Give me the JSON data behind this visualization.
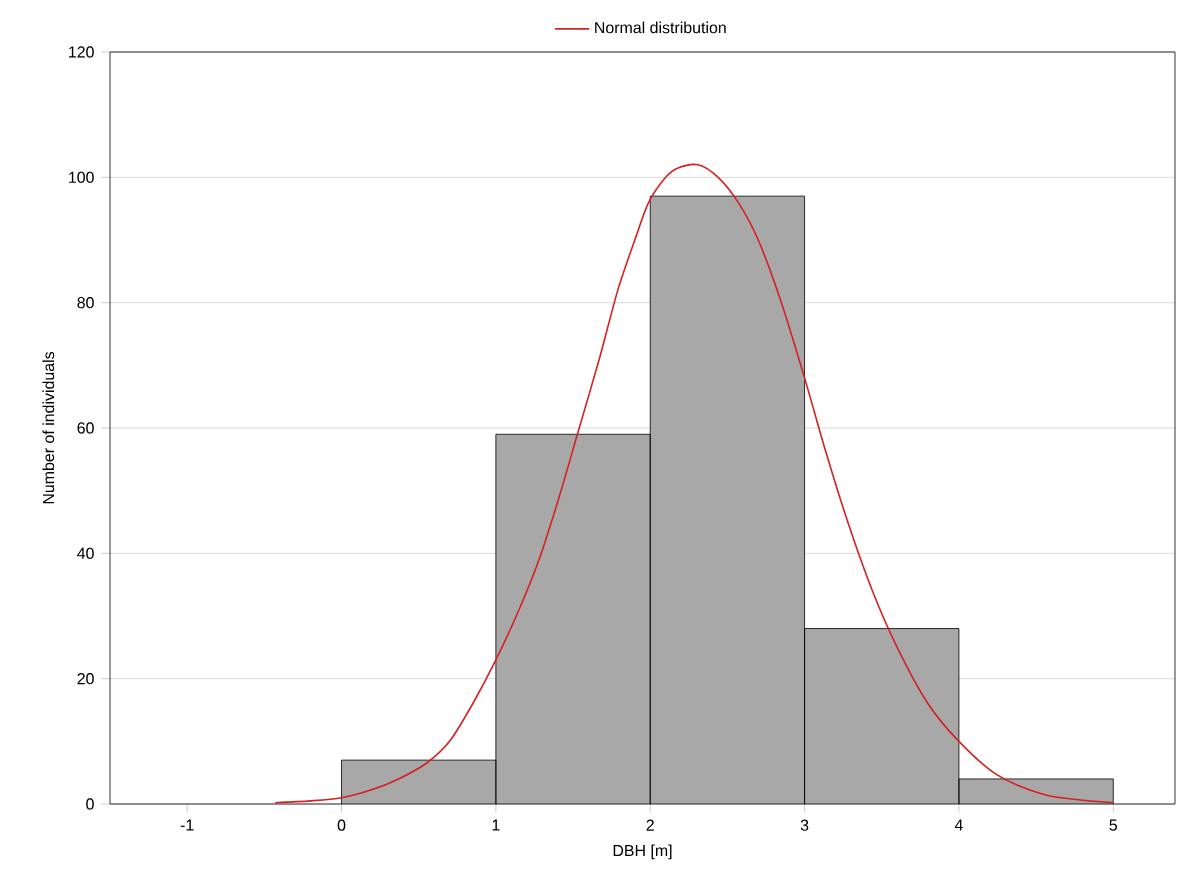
{
  "chart_data": {
    "type": "histogram",
    "xlabel": "DBH [m]",
    "ylabel": "Number of individuals",
    "xlim": [
      -1.5,
      5.4
    ],
    "ylim": [
      0,
      120
    ],
    "xticks": [
      -1,
      0,
      1,
      2,
      3,
      4,
      5
    ],
    "yticks": [
      0,
      20,
      40,
      60,
      80,
      100,
      120
    ],
    "grid": "y",
    "legend": "top",
    "series": [
      {
        "color": "#a8a8a8",
        "bins": [
          0,
          1,
          2,
          3,
          4,
          5
        ],
        "values": [
          7,
          59,
          97,
          28,
          4
        ]
      },
      {
        "type": "line",
        "name": "Normal distribution",
        "color": "#d62020",
        "x": [
          -0.43,
          -0.2,
          0,
          0.2,
          0.37,
          0.55,
          0.7,
          0.85,
          1,
          1.15,
          1.28,
          1.41,
          1.54,
          1.67,
          1.79,
          1.9,
          1.99,
          2.1,
          2.18,
          2.31,
          2.44,
          2.57,
          2.7,
          2.85,
          3,
          3.14,
          3.28,
          3.44,
          3.6,
          3.8,
          4,
          4.25,
          4.57,
          5
        ],
        "values": [
          0.2,
          0.5,
          1,
          2.3,
          4,
          6.5,
          10,
          16,
          23,
          31,
          39,
          49,
          60,
          71,
          82,
          90,
          96,
          100,
          101.5,
          102,
          100,
          96,
          90,
          80,
          68,
          56,
          45,
          34,
          25,
          16,
          10,
          4.6,
          1.4,
          0.2
        ]
      }
    ]
  }
}
